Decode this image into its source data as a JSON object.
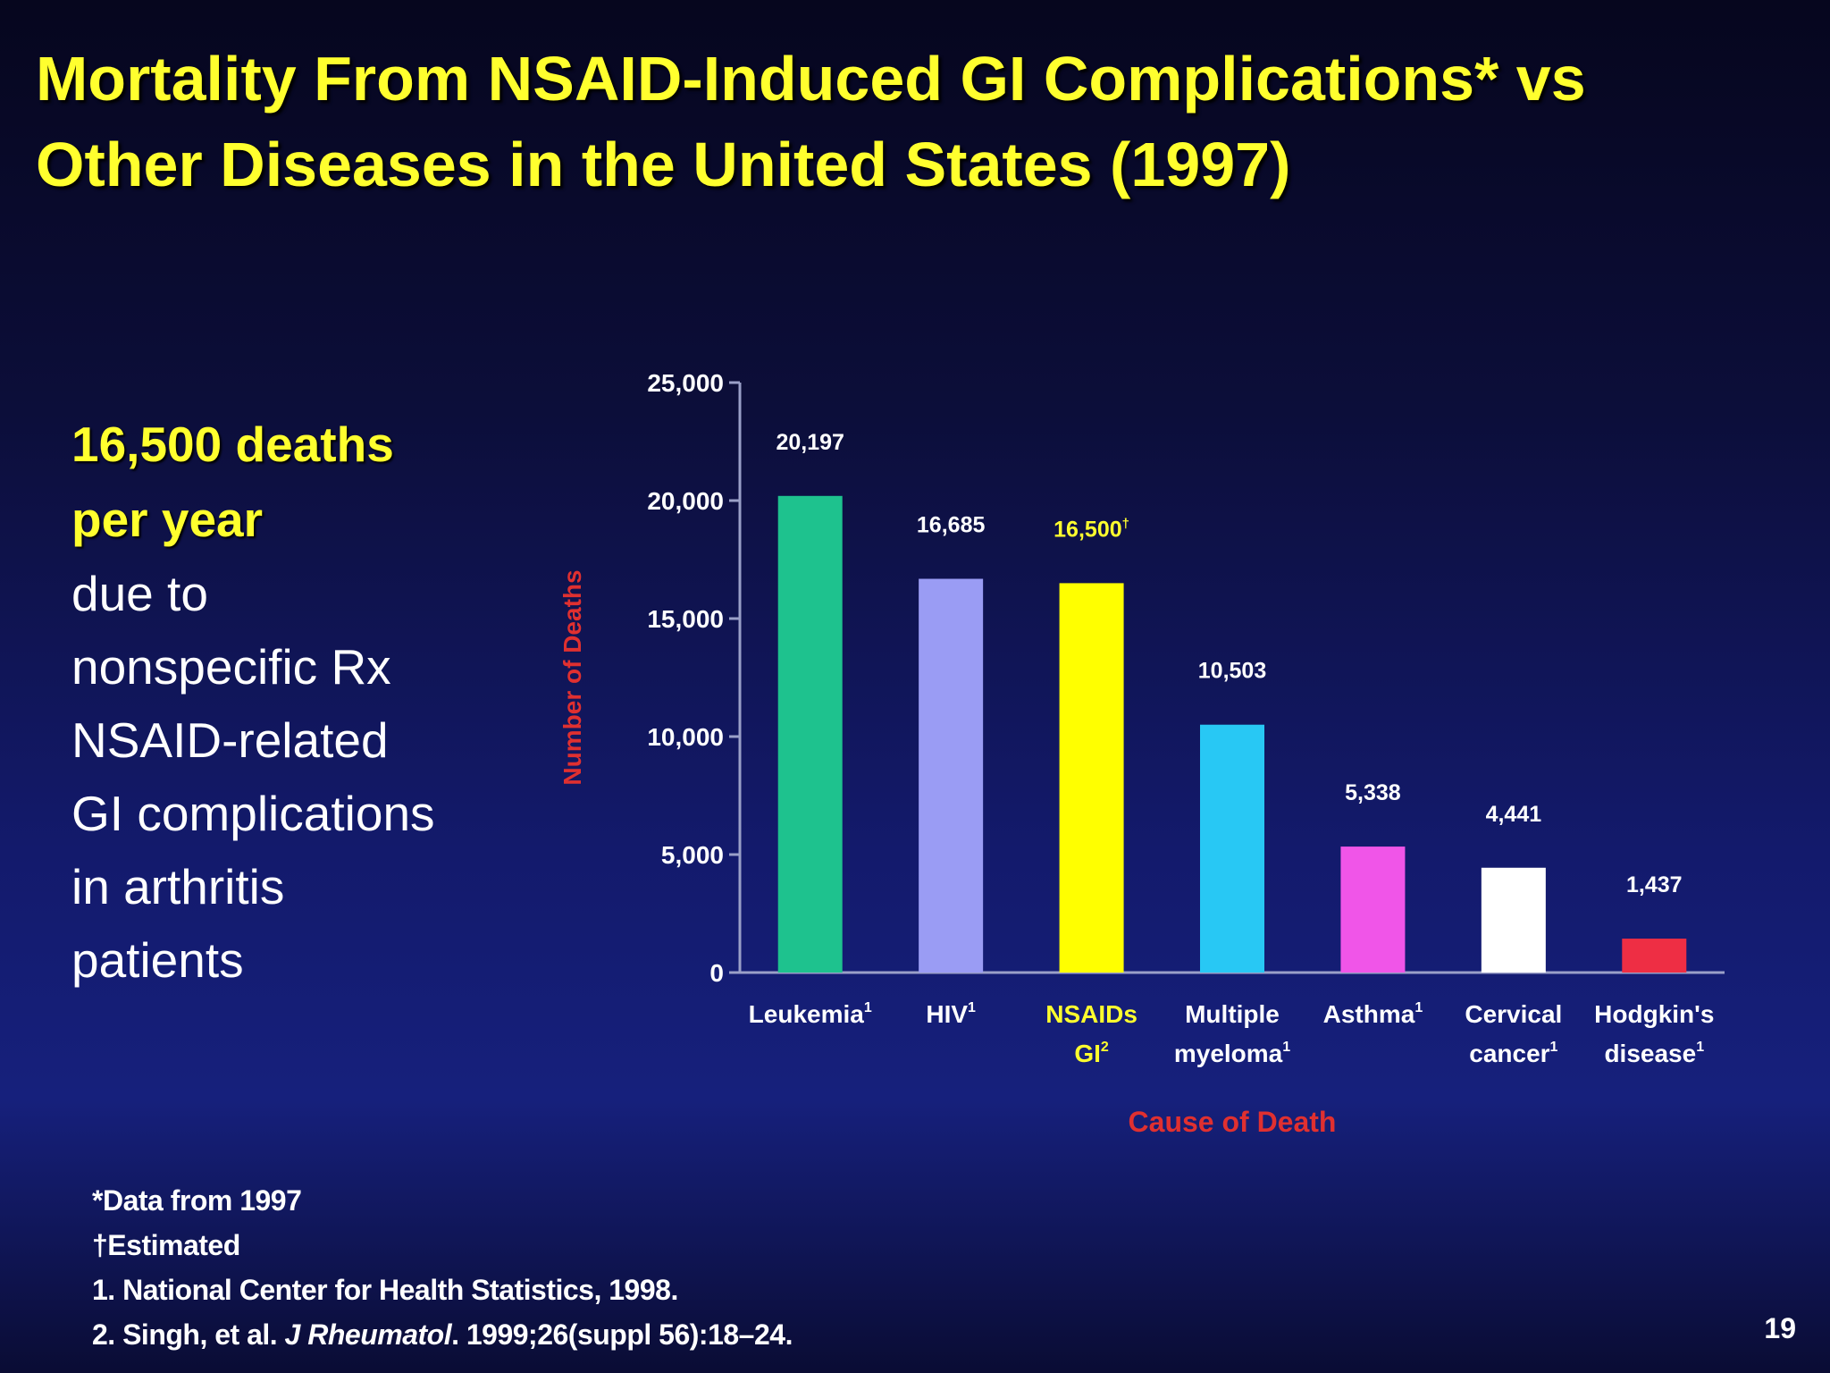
{
  "title": {
    "line1": "Mortality From NSAID-Induced GI Complications* vs",
    "line2": "Other Diseases in the United States (1997)"
  },
  "callout": {
    "highlight_lines": [
      "16,500 deaths",
      "per year"
    ],
    "body_lines": [
      "due to",
      "nonspecific Rx",
      "NSAID-related",
      "GI complications",
      "in arthritis",
      "patients"
    ]
  },
  "chart_data": {
    "type": "bar",
    "xlabel": "Cause of Death",
    "ylabel": "Number of Deaths",
    "ylim": [
      0,
      25000
    ],
    "yticks": [
      0,
      5000,
      10000,
      15000,
      20000,
      25000
    ],
    "ytick_labels": [
      "0",
      "5,000",
      "10,000",
      "15,000",
      "20,000",
      "25,000"
    ],
    "grid": false,
    "categories": [
      {
        "lines": [
          "Leukemia"
        ],
        "sup": "1"
      },
      {
        "lines": [
          "HIV"
        ],
        "sup": "1"
      },
      {
        "lines": [
          "NSAIDs",
          "GI"
        ],
        "sup": "2",
        "highlight": true
      },
      {
        "lines": [
          "Multiple",
          "myeloma"
        ],
        "sup": "1"
      },
      {
        "lines": [
          "Asthma"
        ],
        "sup": "1"
      },
      {
        "lines": [
          "Cervical",
          "cancer"
        ],
        "sup": "1"
      },
      {
        "lines": [
          "Hodgkin's",
          "disease"
        ],
        "sup": "1"
      }
    ],
    "values": [
      20197,
      16685,
      16500,
      10503,
      5338,
      4441,
      1437
    ],
    "value_labels": [
      "20,197",
      "16,685",
      "16,500",
      "10,503",
      "5,338",
      "4,441",
      "1,437"
    ],
    "value_label_sups": [
      "",
      "",
      "†",
      "",
      "",
      "",
      ""
    ],
    "colors": [
      "#1ec28e",
      "#9a9cf4",
      "#ffff00",
      "#28c8f4",
      "#f055e8",
      "#ffffff",
      "#ee2e44"
    ],
    "label_color": "#ffffff",
    "highlight_label_color": "#ffff2e",
    "axis_title_color": "#e03030"
  },
  "footnotes": [
    "*Data from 1997",
    "†Estimated",
    "1. National Center for Health Statistics, 1998."
  ],
  "citation": {
    "prefix": "2. Singh, et al. ",
    "journal": "J Rheumatol",
    "suffix": ". 1999;26(suppl 56):18–24."
  },
  "slide_number": "19"
}
